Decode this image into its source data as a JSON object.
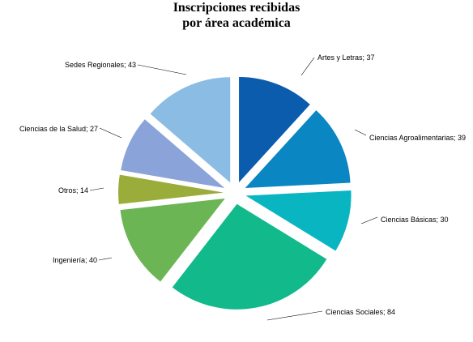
{
  "chart_data": {
    "type": "pie",
    "title_lines": [
      "Inscripciones recibidas",
      "por área académica"
    ],
    "slices": [
      {
        "label": "Artes y Letras; 37",
        "value": 37,
        "color": "#0b5cad"
      },
      {
        "label": "Ciencias Agroalimentarias; 39",
        "value": 39,
        "color": "#0a86c2"
      },
      {
        "label": "Ciencias Básicas; 30",
        "value": 30,
        "color": "#0ab5c2"
      },
      {
        "label": "Ciencias Sociales; 84",
        "value": 84,
        "color": "#12b98a"
      },
      {
        "label": "Ingeniería; 40",
        "value": 40,
        "color": "#6cb555"
      },
      {
        "label": "Otros; 14",
        "value": 14,
        "color": "#9aad3a"
      },
      {
        "label": "Ciencias de la Salud; 27",
        "value": 27,
        "color": "#8aa3d8"
      },
      {
        "label": "Sedes Regionales; 43",
        "value": 43,
        "color": "#8bbce3"
      }
    ]
  }
}
